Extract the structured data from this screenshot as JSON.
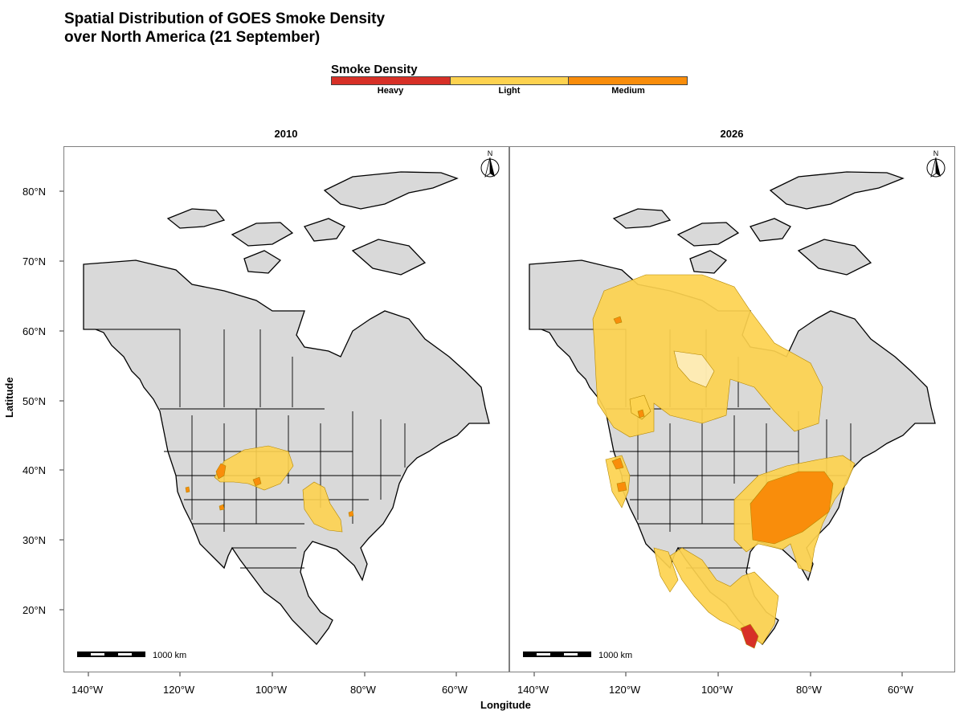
{
  "title_line1": "Spatial Distribution of GOES Smoke Density",
  "title_line2": "over North America (21 September)",
  "legend": {
    "title": "Smoke Density",
    "items": [
      {
        "label": "Heavy",
        "color": "#d73027"
      },
      {
        "label": "Light",
        "color": "#fdd24f"
      },
      {
        "label": "Medium",
        "color": "#f98d0b"
      }
    ]
  },
  "panels": [
    {
      "label": "2010",
      "scale_label": "1000 km",
      "north_label": "N"
    },
    {
      "label": "2026",
      "scale_label": "1000 km",
      "north_label": "N"
    }
  ],
  "axes": {
    "x_title": "Longitude",
    "y_title": "Latitude",
    "x_ticks": [
      "140°W",
      "120°W",
      "100°W",
      "80°W",
      "60°W"
    ],
    "y_ticks": [
      "80°N",
      "70°N",
      "60°N",
      "50°N",
      "40°N",
      "30°N",
      "20°N"
    ]
  },
  "colors": {
    "land": "#d9d9d9",
    "heavy": "#d73027",
    "light": "#fdd24f",
    "medium": "#f98d0b"
  }
}
